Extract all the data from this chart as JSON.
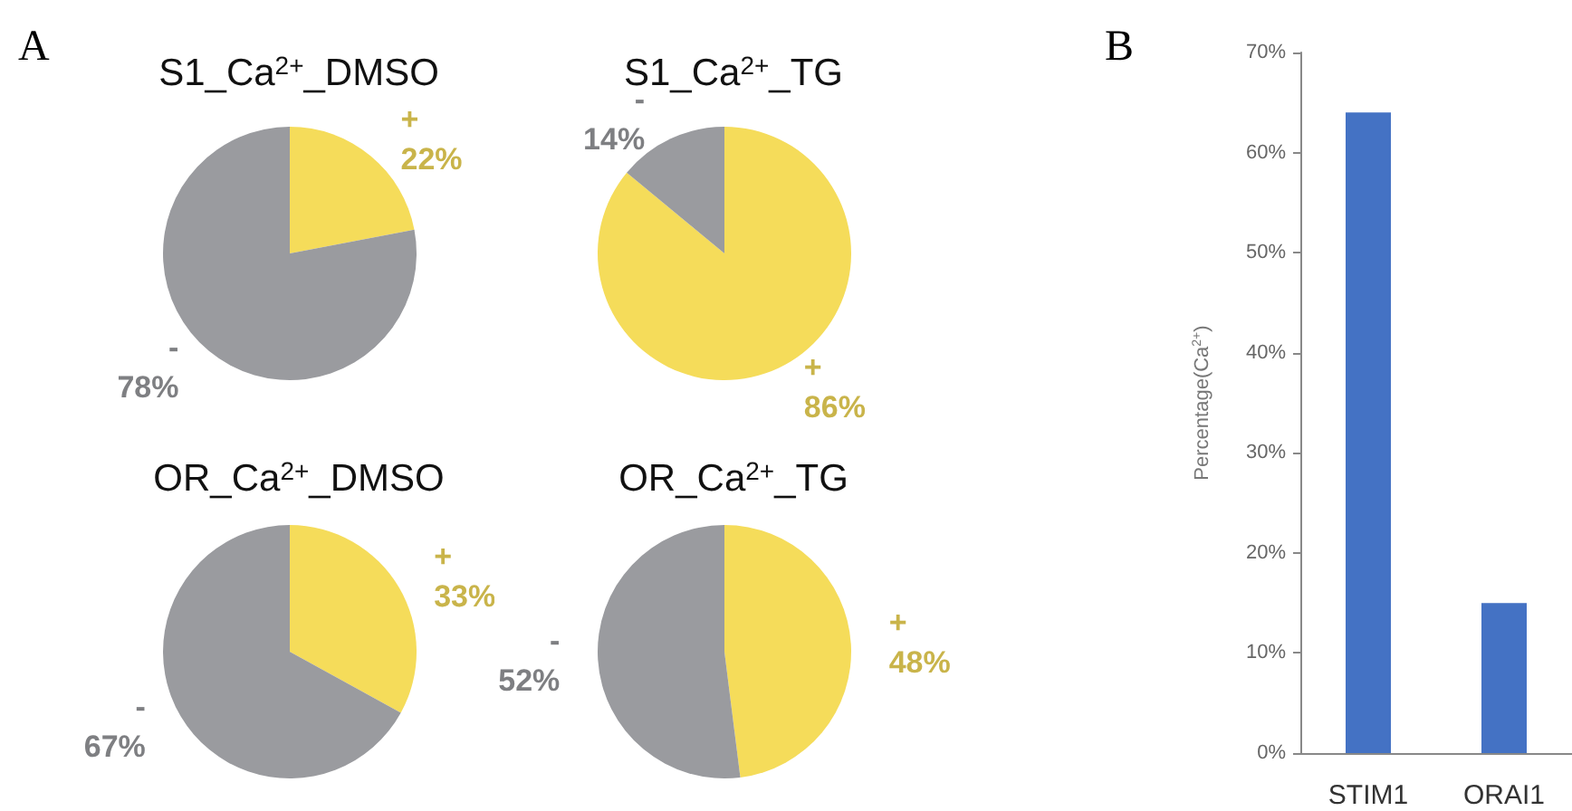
{
  "chart_data": [
    {
      "type": "pie",
      "title": "S1_Ca$^{2+}$_DMSO",
      "annotations": [
        "A"
      ],
      "categories": [
        "+",
        "-"
      ],
      "values": [
        22,
        78
      ],
      "value_labels": [
        "22%",
        "78%"
      ],
      "colors": [
        "#f5dc5a",
        "#9a9b9f"
      ]
    },
    {
      "type": "pie",
      "title": "S1_Ca$^{2+}$_TG",
      "categories": [
        "+",
        "-"
      ],
      "values": [
        86,
        14
      ],
      "value_labels": [
        "86%",
        "14%"
      ],
      "colors": [
        "#f5dc5a",
        "#9a9b9f"
      ]
    },
    {
      "type": "pie",
      "title": "OR_Ca$^{2+}$_DMSO",
      "categories": [
        "+",
        "-"
      ],
      "values": [
        33,
        67
      ],
      "value_labels": [
        "33%",
        "67%"
      ],
      "colors": [
        "#f5dc5a",
        "#9a9b9f"
      ]
    },
    {
      "type": "pie",
      "title": "OR_Ca$^{2+}$_TG",
      "categories": [
        "+",
        "-"
      ],
      "values": [
        48,
        52
      ],
      "value_labels": [
        "48%",
        "52%"
      ],
      "colors": [
        "#f5dc5a",
        "#9a9b9f"
      ]
    },
    {
      "type": "bar",
      "annotations": [
        "B"
      ],
      "ylabel": "Percentage(Ca$^{2+}$)",
      "categories": [
        "STIM1",
        "ORAI1"
      ],
      "values": [
        64,
        15
      ],
      "color": "#4472c4",
      "ylim": [
        0,
        70
      ],
      "yticks": [
        {
          "value": 0,
          "label": "0%"
        },
        {
          "value": 10,
          "label": "10%"
        },
        {
          "value": 20,
          "label": "20%"
        },
        {
          "value": 30,
          "label": "30%"
        },
        {
          "value": 40,
          "label": "40%"
        },
        {
          "value": 50,
          "label": "50%"
        },
        {
          "value": 60,
          "label": "60%"
        },
        {
          "value": 70,
          "label": "70%"
        }
      ],
      "grid": false
    }
  ]
}
